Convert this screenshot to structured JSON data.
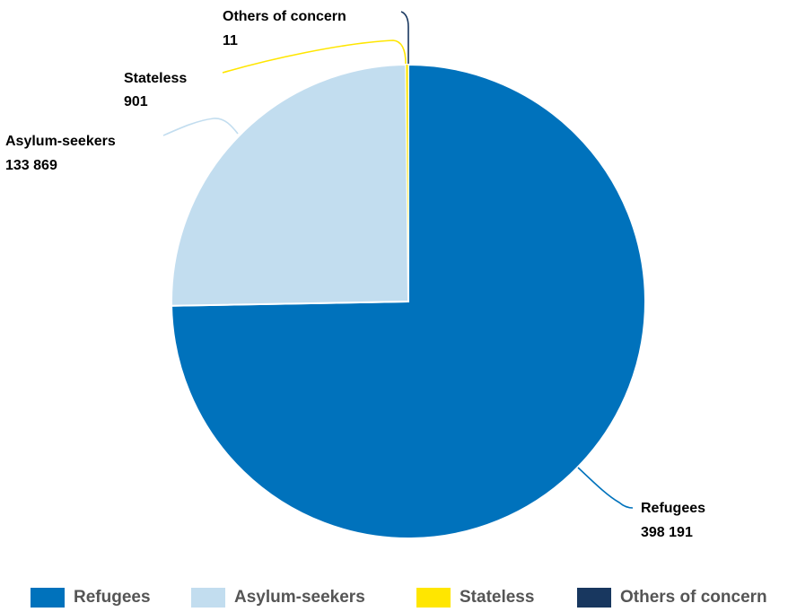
{
  "chart_data": {
    "type": "pie",
    "title": "",
    "slices": [
      {
        "name": "Refugees",
        "value": 398191,
        "value_label": "398 191",
        "color": "#0072bc"
      },
      {
        "name": "Asylum-seekers",
        "value": 133869,
        "value_label": "133 869",
        "color": "#c2ddef"
      },
      {
        "name": "Stateless",
        "value": 901,
        "value_label": "901",
        "color": "#ffe600"
      },
      {
        "name": "Others of concern",
        "value": 11,
        "value_label": "11",
        "color": "#18375f"
      }
    ],
    "legend_position": "bottom",
    "start_angle": "12 o'clock",
    "direction": "clockwise"
  }
}
